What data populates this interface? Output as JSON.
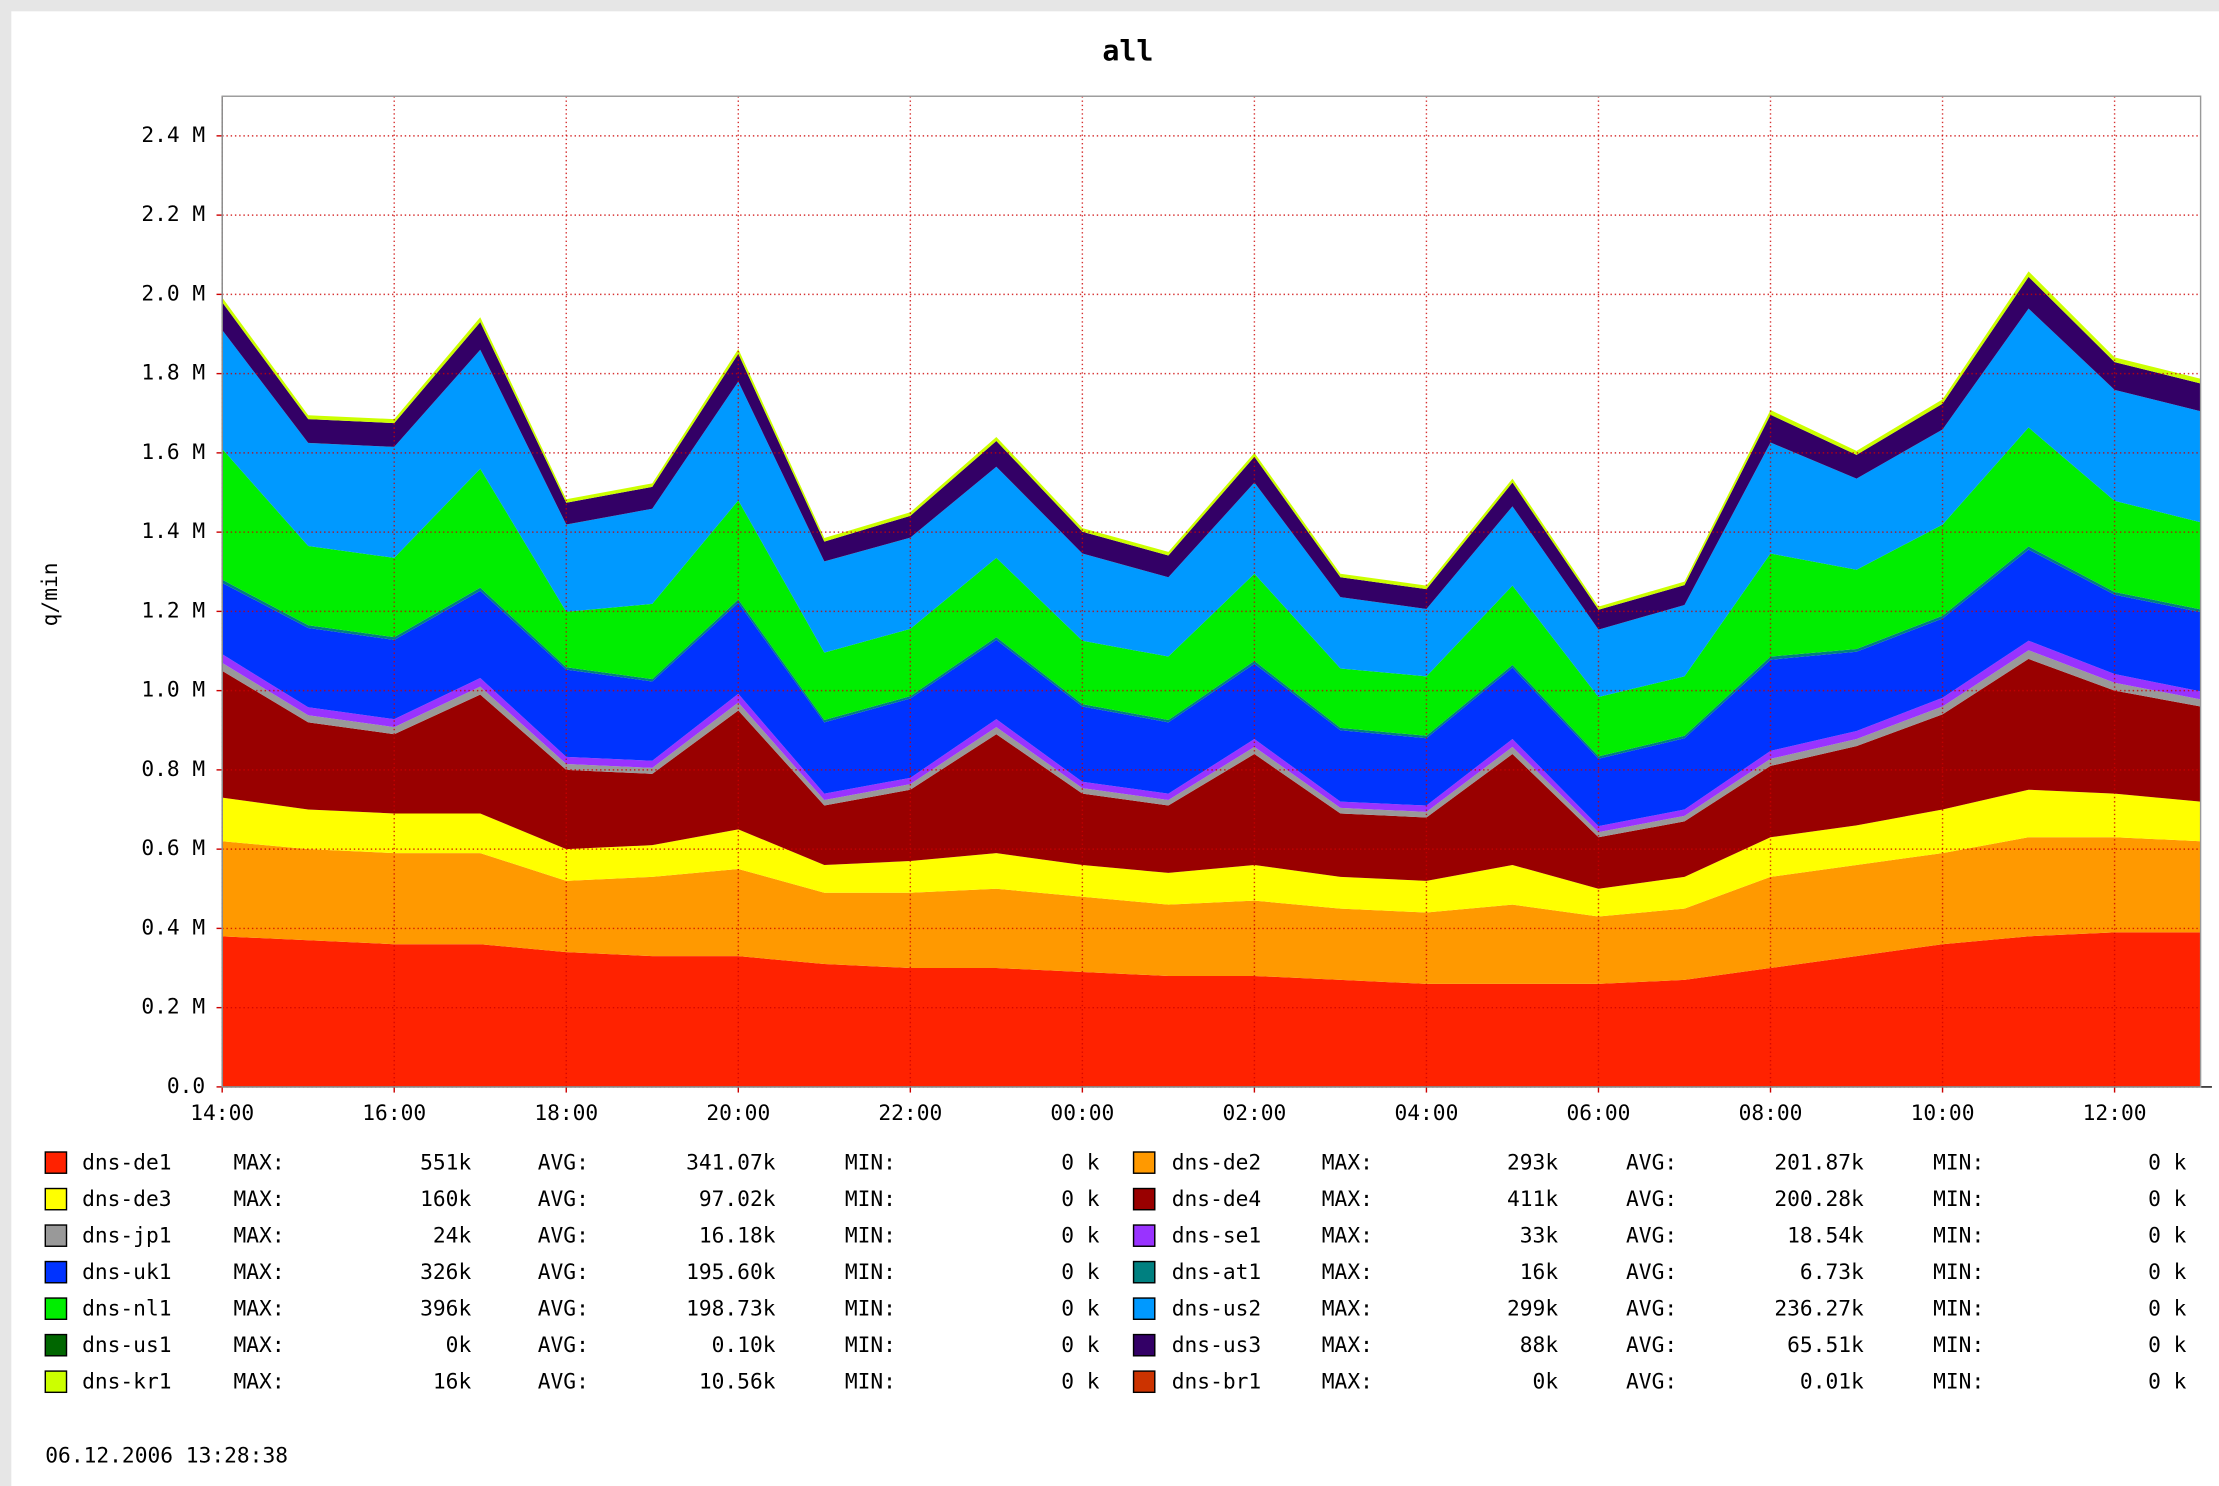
{
  "chart_data": {
    "type": "stacked_area",
    "title": "all",
    "y_label": "q/min",
    "footer": "06.12.2006   13:28:38",
    "stat_labels": [
      "MAX:",
      "AVG:",
      "MIN:"
    ],
    "x": [
      "14:00",
      "15:00",
      "16:00",
      "17:00",
      "18:00",
      "19:00",
      "20:00",
      "21:00",
      "22:00",
      "23:00",
      "00:00",
      "01:00",
      "02:00",
      "03:00",
      "04:00",
      "05:00",
      "06:00",
      "07:00",
      "08:00",
      "09:00",
      "10:00",
      "11:00",
      "12:00",
      "13:00"
    ],
    "xticks": [
      "14:00",
      "16:00",
      "18:00",
      "20:00",
      "22:00",
      "00:00",
      "02:00",
      "04:00",
      "06:00",
      "08:00",
      "10:00",
      "12:00"
    ],
    "ylim": [
      0,
      2500000
    ],
    "yticks": [
      {
        "value": 0,
        "label": "0.0"
      },
      {
        "value": 200000,
        "label": "0.2 M"
      },
      {
        "value": 400000,
        "label": "0.4 M"
      },
      {
        "value": 600000,
        "label": "0.6 M"
      },
      {
        "value": 800000,
        "label": "0.8 M"
      },
      {
        "value": 1000000,
        "label": "1.0 M"
      },
      {
        "value": 1200000,
        "label": "1.2 M"
      },
      {
        "value": 1400000,
        "label": "1.4 M"
      },
      {
        "value": 1600000,
        "label": "1.6 M"
      },
      {
        "value": 1800000,
        "label": "1.8 M"
      },
      {
        "value": 2000000,
        "label": "2.0 M"
      },
      {
        "value": 2200000,
        "label": "2.2 M"
      },
      {
        "value": 2400000,
        "label": "2.4 M"
      }
    ],
    "grid": true,
    "series": [
      {
        "name": "dns-de1",
        "color": "#ff2200",
        "max": "551k",
        "avg": "341.07k",
        "min": "0 k",
        "values": [
          380000,
          370000,
          360000,
          360000,
          340000,
          330000,
          330000,
          310000,
          300000,
          300000,
          290000,
          280000,
          280000,
          270000,
          260000,
          260000,
          260000,
          270000,
          300000,
          330000,
          360000,
          380000,
          390000,
          390000
        ]
      },
      {
        "name": "dns-de2",
        "color": "#ff9900",
        "max": "293k",
        "avg": "201.87k",
        "min": "0 k",
        "values": [
          240000,
          230000,
          230000,
          230000,
          180000,
          200000,
          220000,
          180000,
          190000,
          200000,
          190000,
          180000,
          190000,
          180000,
          180000,
          200000,
          170000,
          180000,
          230000,
          230000,
          230000,
          250000,
          240000,
          230000
        ]
      },
      {
        "name": "dns-de3",
        "color": "#ffff00",
        "max": "160k",
        "avg": "97.02k",
        "min": "0 k",
        "values": [
          110000,
          100000,
          100000,
          100000,
          80000,
          80000,
          100000,
          70000,
          80000,
          90000,
          80000,
          80000,
          90000,
          80000,
          80000,
          100000,
          70000,
          80000,
          100000,
          100000,
          110000,
          120000,
          110000,
          100000
        ]
      },
      {
        "name": "dns-de4",
        "color": "#990000",
        "max": "411k",
        "avg": "200.28k",
        "min": "0 k",
        "values": [
          320000,
          220000,
          200000,
          300000,
          200000,
          180000,
          300000,
          150000,
          180000,
          300000,
          180000,
          170000,
          280000,
          160000,
          160000,
          280000,
          130000,
          140000,
          180000,
          200000,
          240000,
          330000,
          260000,
          240000
        ]
      },
      {
        "name": "dns-jp1",
        "color": "#999999",
        "max": "24k",
        "avg": "16.18k",
        "min": "0 k",
        "values": [
          20000,
          18000,
          18000,
          20000,
          15000,
          15000,
          20000,
          14000,
          14000,
          18000,
          14000,
          14000,
          18000,
          14000,
          14000,
          18000,
          13000,
          14000,
          18000,
          18000,
          20000,
          22000,
          20000,
          18000
        ]
      },
      {
        "name": "dns-se1",
        "color": "#9933ff",
        "max": "33k",
        "avg": "18.54k",
        "min": "0 k",
        "values": [
          22000,
          20000,
          20000,
          22000,
          18000,
          18000,
          22000,
          16000,
          16000,
          20000,
          16000,
          16000,
          20000,
          16000,
          16000,
          20000,
          15000,
          16000,
          20000,
          20000,
          22000,
          24000,
          22000,
          20000
        ]
      },
      {
        "name": "dns-uk1",
        "color": "#0033ff",
        "max": "326k",
        "avg": "195.60k",
        "min": "0 k",
        "values": [
          180000,
          200000,
          200000,
          220000,
          220000,
          200000,
          230000,
          180000,
          200000,
          200000,
          190000,
          180000,
          190000,
          180000,
          170000,
          180000,
          170000,
          180000,
          230000,
          200000,
          200000,
          230000,
          200000,
          200000
        ]
      },
      {
        "name": "dns-at1",
        "color": "#008080",
        "max": "16k",
        "avg": "6.73k",
        "min": "0 k",
        "values": [
          8000,
          7000,
          7000,
          8000,
          6000,
          6000,
          8000,
          6000,
          6000,
          7000,
          6000,
          6000,
          7000,
          6000,
          6000,
          7000,
          6000,
          6000,
          8000,
          7000,
          7000,
          8000,
          7000,
          7000
        ]
      },
      {
        "name": "dns-nl1",
        "color": "#00ee00",
        "max": "396k",
        "avg": "198.73k",
        "min": "0 k",
        "values": [
          330000,
          200000,
          200000,
          300000,
          140000,
          190000,
          250000,
          170000,
          170000,
          200000,
          160000,
          160000,
          220000,
          150000,
          150000,
          200000,
          150000,
          150000,
          260000,
          200000,
          230000,
          300000,
          230000,
          220000
        ]
      },
      {
        "name": "dns-us2",
        "color": "#0099ff",
        "max": "299k",
        "avg": "236.27k",
        "min": "0 k",
        "values": [
          300000,
          260000,
          280000,
          300000,
          220000,
          240000,
          300000,
          230000,
          230000,
          230000,
          220000,
          200000,
          230000,
          180000,
          170000,
          200000,
          170000,
          180000,
          280000,
          230000,
          240000,
          300000,
          280000,
          280000
        ]
      },
      {
        "name": "dns-us1",
        "color": "#006600",
        "max": "0k",
        "avg": "0.10k",
        "min": "0 k",
        "values": [
          100,
          100,
          100,
          100,
          100,
          100,
          100,
          100,
          100,
          100,
          100,
          100,
          100,
          100,
          100,
          100,
          100,
          100,
          100,
          100,
          100,
          100,
          100,
          100
        ]
      },
      {
        "name": "dns-us3",
        "color": "#330066",
        "max": "88k",
        "avg": "65.51k",
        "min": "0 k",
        "values": [
          70000,
          60000,
          60000,
          70000,
          55000,
          55000,
          70000,
          50000,
          55000,
          65000,
          55000,
          55000,
          65000,
          50000,
          50000,
          60000,
          50000,
          50000,
          70000,
          60000,
          65000,
          80000,
          70000,
          70000
        ]
      },
      {
        "name": "dns-kr1",
        "color": "#ccff00",
        "max": "16k",
        "avg": "10.56k",
        "min": "0 k",
        "values": [
          12000,
          10000,
          10000,
          12000,
          9000,
          9000,
          12000,
          9000,
          9000,
          10000,
          9000,
          9000,
          10000,
          9000,
          9000,
          10000,
          8000,
          9000,
          12000,
          10000,
          11000,
          14000,
          12000,
          12000
        ]
      },
      {
        "name": "dns-br1",
        "color": "#cc3300",
        "max": "0k",
        "avg": "0.01k",
        "min": "0 k",
        "values": [
          10,
          10,
          10,
          10,
          10,
          10,
          10,
          10,
          10,
          10,
          10,
          10,
          10,
          10,
          10,
          10,
          10,
          10,
          10,
          10,
          10,
          10,
          10,
          10
        ]
      }
    ]
  }
}
